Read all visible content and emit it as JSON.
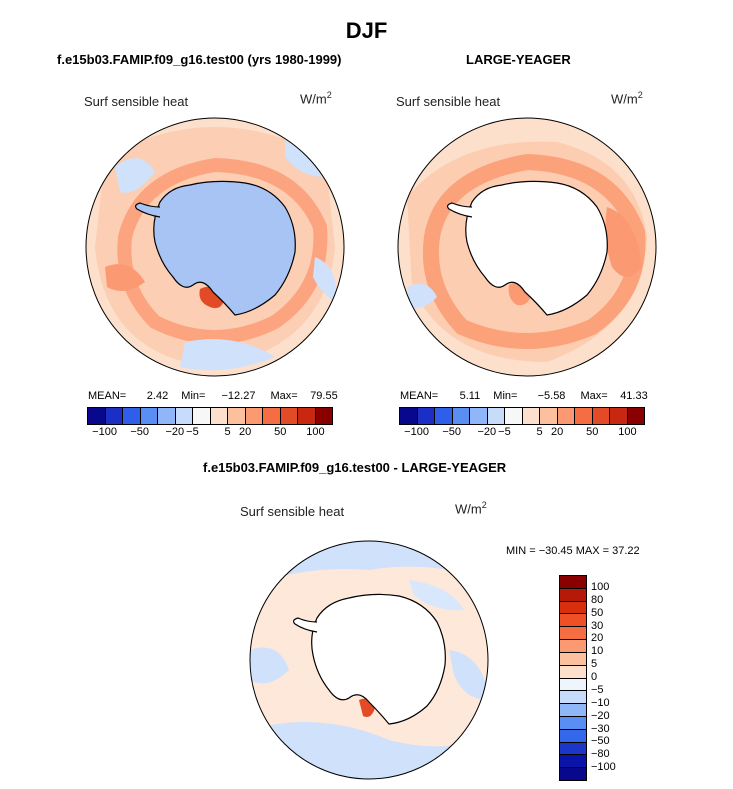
{
  "figure": {
    "season_title": "DJF",
    "variable": "Surf sensible heat",
    "units_base": "W/m",
    "units_exp": "2"
  },
  "panels": {
    "model": {
      "title": "f.e15b03.FAMIP.f09_g16.test00 (yrs 1980-1999)",
      "mean_label": "MEAN=",
      "mean": "2.42",
      "min_label": "Min=",
      "min": "−12.27",
      "max_label": "Max=",
      "max": "79.55"
    },
    "obs": {
      "title": "LARGE-YEAGER",
      "mean_label": "MEAN=",
      "mean": "5.11",
      "min_label": "Min=",
      "min": "−5.58",
      "max_label": "Max=",
      "max": "41.33"
    },
    "diff": {
      "title": "f.e15b03.FAMIP.f09_g16.test00 - LARGE-YEAGER",
      "minmax": "MIN = −30.45 MAX =   37.22"
    }
  },
  "colorbars": {
    "horizontal_ticks": [
      "−100",
      "−50",
      "−20",
      "−5",
      "5",
      "20",
      "50",
      "100"
    ],
    "horizontal_colors": [
      "#08088c",
      "#1c2fc4",
      "#2f5fe8",
      "#5a8ef2",
      "#8fb6f7",
      "#c7dbfb",
      "#f7f7f7",
      "#fde0cc",
      "#fcc09e",
      "#fb9a72",
      "#f46d43",
      "#e34a26",
      "#c82812",
      "#8a0000"
    ],
    "vertical_ticks": [
      "100",
      "80",
      "50",
      "30",
      "20",
      "10",
      "5",
      "0",
      "−5",
      "−10",
      "−20",
      "−30",
      "−50",
      "−80",
      "−100"
    ],
    "vertical_colors": [
      "#8a0000",
      "#b51a08",
      "#d8300f",
      "#ef5026",
      "#f46d43",
      "#fb9a72",
      "#fcc09e",
      "#fde0cc",
      "#eef5fd",
      "#c7dbfb",
      "#8fb6f7",
      "#5a8ef2",
      "#3368ea",
      "#1c36c8",
      "#0a14a8",
      "#08088c"
    ]
  },
  "map_colors": {
    "ocean_light_blue": "#cfe1fb",
    "ocean_blue": "#a9c8f5",
    "peach": "#fde0cc",
    "salmon": "#fcc09e",
    "orange": "#fb9a72",
    "red": "#e34a26",
    "ice_blue": "#a7c4f4"
  }
}
